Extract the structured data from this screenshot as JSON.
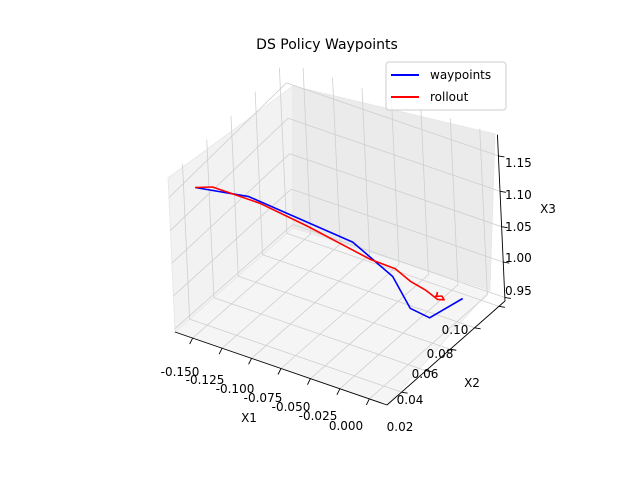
{
  "chart_data": {
    "type": "line3d",
    "title": "DS Policy Waypoints",
    "xlabel": "X1",
    "ylabel": "X2",
    "zlabel": "X3",
    "xlim": [
      -0.165,
      0.015
    ],
    "ylim": [
      0.015,
      0.112
    ],
    "zlim": [
      0.945,
      1.18
    ],
    "x_ticks": [
      "-0.150",
      "-0.125",
      "-0.100",
      "-0.075",
      "-0.050",
      "-0.025",
      "0.000"
    ],
    "y_ticks": [
      "0.02",
      "0.04",
      "0.06",
      "0.08",
      "0.10"
    ],
    "z_ticks": [
      "0.95",
      "1.00",
      "1.05",
      "1.10",
      "1.15"
    ],
    "grid": true,
    "legend_position": "top-right",
    "series": [
      {
        "name": "waypoints",
        "color": "#0000ff",
        "points": [
          [
            -0.155,
            0.1,
            1.15
          ],
          [
            -0.12,
            0.09,
            1.14
          ],
          [
            -0.03,
            0.092,
            1.13
          ],
          [
            -0.01,
            0.08,
            1.07
          ],
          [
            -0.007,
            0.07,
            1.008
          ],
          [
            -0.007,
            0.055,
            0.97
          ],
          [
            -0.005,
            0.03,
            0.96
          ]
        ]
      },
      {
        "name": "rollout",
        "color": "#ff0000",
        "points": [
          [
            -0.155,
            0.1,
            1.15
          ],
          [
            -0.14,
            0.1,
            1.16
          ],
          [
            -0.1,
            0.1,
            1.16
          ],
          [
            -0.06,
            0.1,
            1.15
          ],
          [
            -0.03,
            0.1,
            1.14
          ],
          [
            -0.012,
            0.095,
            1.12
          ],
          [
            -0.002,
            0.085,
            1.095
          ],
          [
            0.0,
            0.075,
            1.06
          ],
          [
            -0.002,
            0.062,
            1.025
          ],
          [
            -0.005,
            0.05,
            0.99
          ],
          [
            -0.008,
            0.042,
            0.975
          ],
          [
            -0.012,
            0.04,
            0.975
          ],
          [
            -0.014,
            0.043,
            0.978
          ],
          [
            -0.016,
            0.04,
            0.975
          ],
          [
            -0.019,
            0.037,
            0.972
          ]
        ]
      }
    ]
  }
}
